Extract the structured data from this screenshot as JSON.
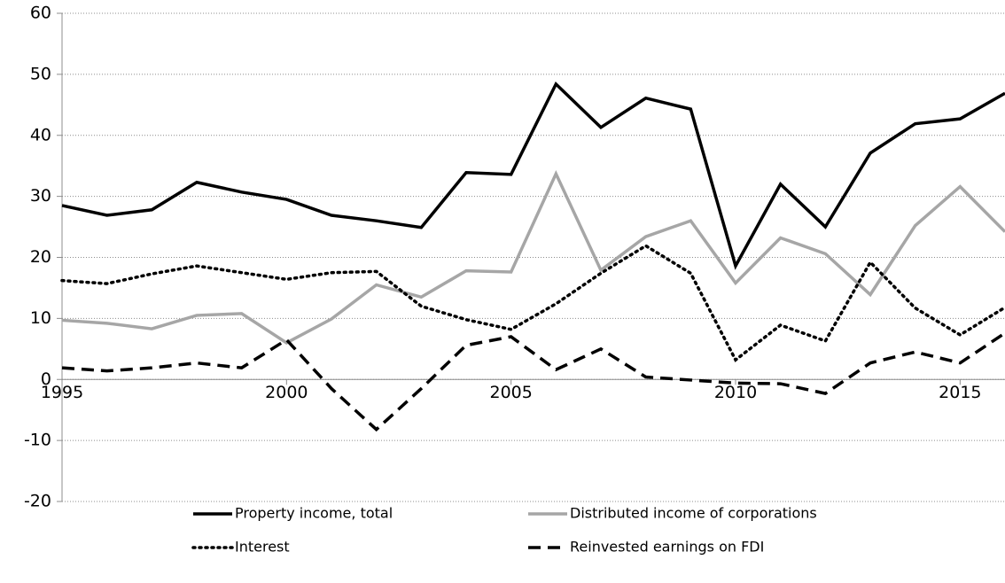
{
  "chart_data": {
    "type": "line",
    "x": [
      1995,
      1996,
      1997,
      1998,
      1999,
      2000,
      2001,
      2002,
      2003,
      2004,
      2005,
      2006,
      2007,
      2008,
      2009,
      2010,
      2011,
      2012,
      2013,
      2014,
      2015,
      2016
    ],
    "series": [
      {
        "name": "Property income, total",
        "color": "#000000",
        "dash": "solid",
        "values": [
          28.5,
          26.9,
          27.8,
          32.3,
          30.7,
          29.5,
          26.9,
          26.0,
          24.9,
          33.9,
          33.6,
          48.4,
          41.3,
          46.1,
          44.3,
          18.6,
          32.0,
          25.0,
          37.1,
          41.9,
          42.7,
          46.9
        ]
      },
      {
        "name": "Distributed income of corporations",
        "color": "#a6a6a6",
        "dash": "solid",
        "values": [
          9.7,
          9.2,
          8.3,
          10.5,
          10.8,
          6.0,
          9.9,
          15.5,
          13.5,
          17.8,
          17.6,
          33.7,
          17.9,
          23.4,
          26.0,
          15.8,
          23.2,
          20.6,
          13.9,
          25.2,
          31.6,
          24.2
        ]
      },
      {
        "name": "Interest",
        "color": "#000000",
        "dash": "dotted",
        "values": [
          16.2,
          15.7,
          17.3,
          18.6,
          17.5,
          16.4,
          17.5,
          17.7,
          12.0,
          9.8,
          8.2,
          12.4,
          17.4,
          21.9,
          17.4,
          3.2,
          8.9,
          6.3,
          19.2,
          11.7,
          7.3,
          11.8
        ]
      },
      {
        "name": "Reinvested earnings on FDI",
        "color": "#000000",
        "dash": "dashed",
        "values": [
          1.9,
          1.4,
          1.9,
          2.7,
          1.9,
          6.5,
          -1.5,
          -8.2,
          -1.5,
          5.6,
          7.0,
          1.6,
          5.0,
          0.4,
          -0.1,
          -0.6,
          -0.7,
          -2.3,
          2.7,
          4.5,
          2.7,
          7.6
        ]
      }
    ],
    "xlim": [
      1995,
      2016
    ],
    "xticks": [
      1995,
      2000,
      2005,
      2010,
      2015
    ],
    "ylim": [
      -20,
      60
    ],
    "yticks": [
      -20,
      -10,
      0,
      10,
      20,
      30,
      40,
      50,
      60
    ],
    "grid": true
  }
}
